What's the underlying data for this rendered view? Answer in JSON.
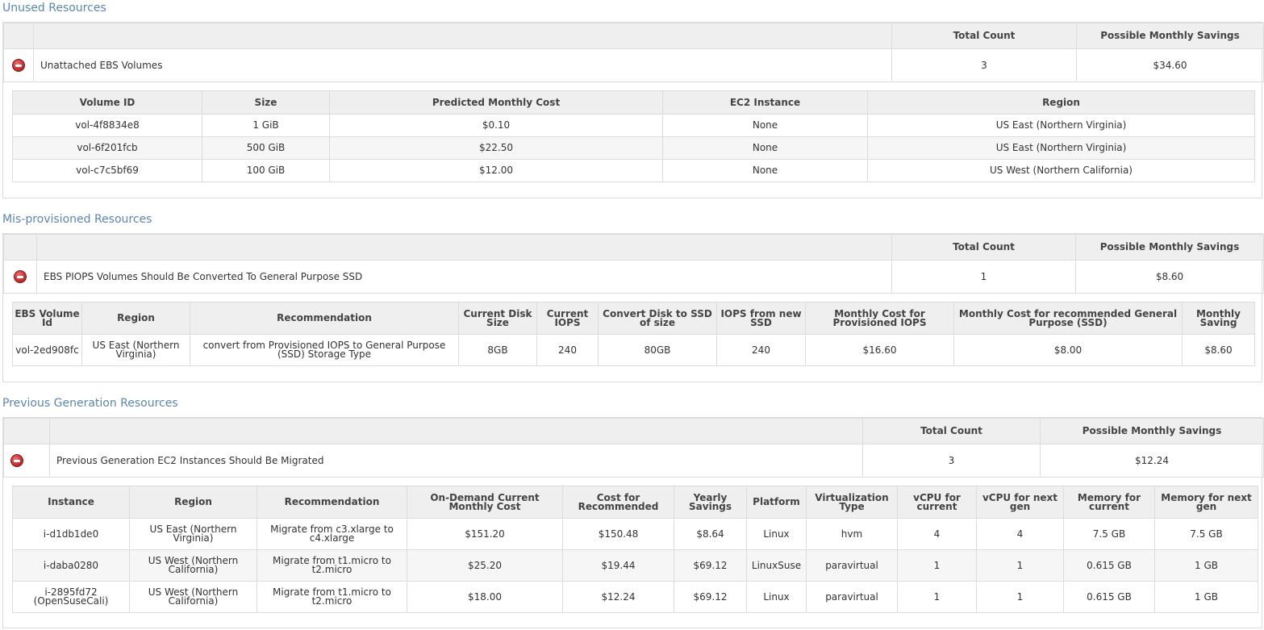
{
  "unused": {
    "title": "Unused Resources",
    "headers": {
      "total_count": "Total Count",
      "savings": "Possible Monthly Savings"
    },
    "summary": {
      "label": "Unattached EBS Volumes",
      "count": "3",
      "savings": "$34.60"
    },
    "columns": [
      "Volume ID",
      "Size",
      "Predicted Monthly Cost",
      "EC2 Instance",
      "Region"
    ],
    "rows": [
      [
        "vol-4f8834e8",
        "1 GiB",
        "$0.10",
        "None",
        "US East (Northern Virginia)"
      ],
      [
        "vol-6f201fcb",
        "500 GiB",
        "$22.50",
        "None",
        "US East (Northern Virginia)"
      ],
      [
        "vol-c7c5bf69",
        "100 GiB",
        "$12.00",
        "None",
        "US West (Northern California)"
      ]
    ]
  },
  "misprovisioned": {
    "title": "Mis-provisioned Resources",
    "headers": {
      "total_count": "Total Count",
      "savings": "Possible Monthly Savings"
    },
    "summary": {
      "label": "EBS PIOPS Volumes Should Be Converted To General Purpose SSD",
      "count": "1",
      "savings": "$8.60"
    },
    "columns": [
      "EBS Volume Id",
      "Region",
      "Recommendation",
      "Current Disk Size",
      "Current IOPS",
      "Convert Disk to SSD of size",
      "IOPS from new SSD",
      "Monthly Cost for Provisioned IOPS",
      "Monthly Cost for recommended General Purpose (SSD)",
      "Monthly Saving"
    ],
    "rows": [
      [
        "vol-2ed908fc",
        "US East (Northern Virginia)",
        "convert from Provisioned IOPS to General Purpose (SSD) Storage Type",
        "8GB",
        "240",
        "80GB",
        "240",
        "$16.60",
        "$8.00",
        "$8.60"
      ]
    ]
  },
  "previous": {
    "title": "Previous Generation Resources",
    "headers": {
      "total_count": "Total Count",
      "savings": "Possible Monthly Savings"
    },
    "summary": {
      "label": "Previous Generation EC2 Instances Should Be Migrated",
      "count": "3",
      "savings": "$12.24"
    },
    "columns": [
      "Instance",
      "Region",
      "Recommendation",
      "On-Demand Current Monthly Cost",
      "Cost for Recommended",
      "Yearly Savings",
      "Platform",
      "Virtualization Type",
      "vCPU for current",
      "vCPU for next gen",
      "Memory for current",
      "Memory for next gen"
    ],
    "rows": [
      [
        "i-d1db1de0",
        "US East (Northern Virginia)",
        "Migrate from c3.xlarge to c4.xlarge",
        "$151.20",
        "$150.48",
        "$8.64",
        "Linux",
        "hvm",
        "4",
        "4",
        "7.5 GB",
        "7.5 GB"
      ],
      [
        "i-daba0280",
        "US West (Northern California)",
        "Migrate from t1.micro to t2.micro",
        "$25.20",
        "$19.44",
        "$69.12",
        "LinuxSuse",
        "paravirtual",
        "1",
        "1",
        "0.615 GB",
        "1 GB"
      ],
      [
        "i-2895fd72 (OpenSuseCali)",
        "US West (Northern California)",
        "Migrate from t1.micro to t2.micro",
        "$18.00",
        "$12.24",
        "$69.12",
        "Linux",
        "paravirtual",
        "1",
        "1",
        "0.615 GB",
        "1 GB"
      ]
    ]
  },
  "icons": {
    "collapse": "minus-circle-icon"
  },
  "colors": {
    "section_title": "#5b86b0",
    "header_bg": "#efefef",
    "border": "#dcdcdc",
    "collapse_icon": "#c73030"
  }
}
